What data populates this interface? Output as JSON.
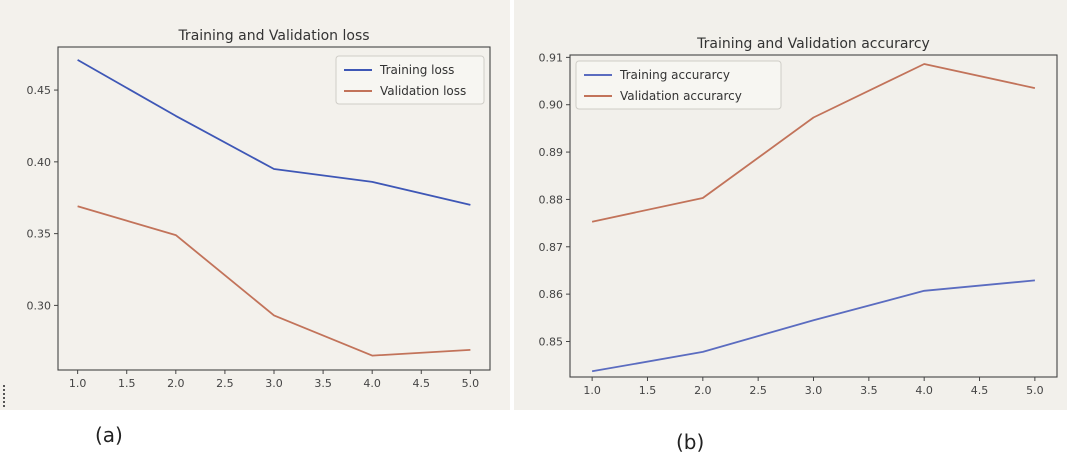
{
  "captions": [
    "(a)",
    "(b)"
  ],
  "chart_data": [
    {
      "type": "line",
      "title": "Training and Validation loss",
      "xlabel": "",
      "ylabel": "",
      "x": [
        1,
        2,
        3,
        4,
        5
      ],
      "xlim": [
        0.8,
        5.2
      ],
      "ylim": [
        0.255,
        0.48
      ],
      "xticks": [
        1.0,
        1.5,
        2.0,
        2.5,
        3.0,
        3.5,
        4.0,
        4.5,
        5.0
      ],
      "xtick_labels": [
        "1.0",
        "1.5",
        "2.0",
        "2.5",
        "3.0",
        "3.5",
        "4.0",
        "4.5",
        "5.0"
      ],
      "yticks": [
        0.3,
        0.35,
        0.4,
        0.45
      ],
      "ytick_labels": [
        "0.30",
        "0.35",
        "0.40",
        "0.45"
      ],
      "grid": false,
      "legend_position": "top-right",
      "series": [
        {
          "name": "Training loss",
          "color": "#3e57b6",
          "values": [
            0.471,
            0.432,
            0.395,
            0.386,
            0.37
          ]
        },
        {
          "name": "Validation loss",
          "color": "#c2735a",
          "values": [
            0.369,
            0.349,
            0.293,
            0.265,
            0.269
          ]
        }
      ]
    },
    {
      "type": "line",
      "title": "Training and Validation accurarcy",
      "xlabel": "",
      "ylabel": "",
      "x": [
        1,
        2,
        3,
        4,
        5
      ],
      "xlim": [
        0.8,
        5.2
      ],
      "ylim": [
        0.8425,
        0.9105
      ],
      "xticks": [
        1.0,
        1.5,
        2.0,
        2.5,
        3.0,
        3.5,
        4.0,
        4.5,
        5.0
      ],
      "xtick_labels": [
        "1.0",
        "1.5",
        "2.0",
        "2.5",
        "3.0",
        "3.5",
        "4.0",
        "4.5",
        "5.0"
      ],
      "yticks": [
        0.85,
        0.86,
        0.87,
        0.88,
        0.89,
        0.9,
        0.91
      ],
      "ytick_labels": [
        "0.85",
        "0.86",
        "0.87",
        "0.88",
        "0.89",
        "0.90",
        "0.91"
      ],
      "grid": false,
      "legend_position": "top-left",
      "series": [
        {
          "name": "Training accurarcy",
          "color": "#5b6cc0",
          "values": [
            0.8437,
            0.8478,
            0.8545,
            0.8607,
            0.8629
          ]
        },
        {
          "name": "Validation accurarcy",
          "color": "#c2735a",
          "values": [
            0.8753,
            0.8803,
            0.8973,
            0.9086,
            0.9035
          ]
        }
      ]
    }
  ]
}
